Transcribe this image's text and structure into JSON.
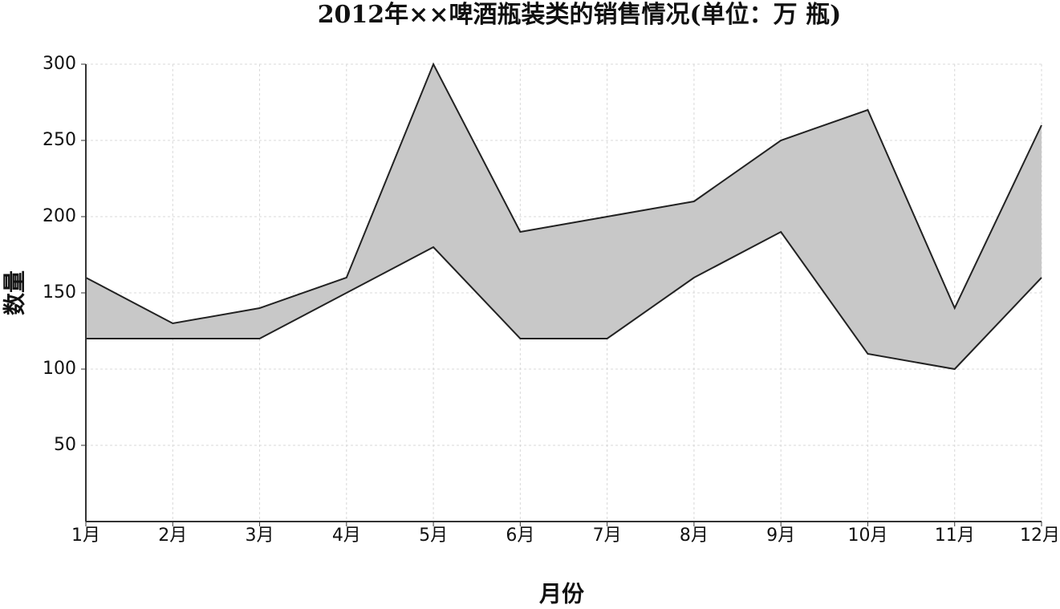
{
  "chart_data": {
    "type": "range-area",
    "title": "2012年××啤酒瓶装类的销售情况(单位：万 瓶)",
    "x_label": "月份",
    "y_label": "数量",
    "categories": [
      "1月",
      "2月",
      "3月",
      "4月",
      "5月",
      "6月",
      "7月",
      "8月",
      "9月",
      "10月",
      "11月",
      "12月"
    ],
    "series": [
      {
        "color": "#222222",
        "values": [
          160,
          130,
          140,
          160,
          300,
          190,
          200,
          210,
          250,
          270,
          140,
          260
        ]
      },
      {
        "color": "#222222",
        "values": [
          120,
          120,
          120,
          150,
          180,
          120,
          120,
          160,
          190,
          110,
          100,
          160
        ]
      }
    ],
    "fill_color": "#c8c8c8",
    "ylim": [
      0,
      300
    ],
    "yticks": [
      50,
      100,
      150,
      200,
      250,
      300
    ],
    "grid": true
  }
}
